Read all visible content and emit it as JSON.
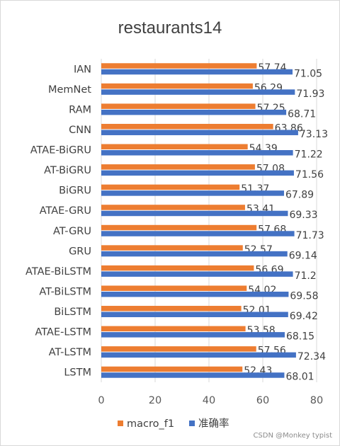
{
  "chart_data": {
    "type": "bar",
    "orientation": "horizontal",
    "title": "restaurants14",
    "categories": [
      "IAN",
      "MemNet",
      "RAM",
      "CNN",
      "ATAE-BiGRU",
      "AT-BiGRU",
      "BiGRU",
      "ATAE-GRU",
      "AT-GRU",
      "GRU",
      "ATAE-BiLSTM",
      "AT-BiLSTM",
      "BiLSTM",
      "ATAE-LSTM",
      "AT-LSTM",
      "LSTM"
    ],
    "series": [
      {
        "name": "macro_f1",
        "color": "#ED7D31",
        "values": [
          57.74,
          56.29,
          57.25,
          63.86,
          54.39,
          57.08,
          51.37,
          53.41,
          57.68,
          52.57,
          56.69,
          54.02,
          52.01,
          53.58,
          57.56,
          52.43
        ]
      },
      {
        "name": "准确率",
        "color": "#4472C4",
        "values": [
          71.05,
          71.93,
          68.71,
          73.13,
          71.22,
          71.56,
          67.89,
          69.33,
          71.73,
          69.14,
          71.2,
          69.58,
          69.42,
          68.15,
          72.34,
          68.01
        ]
      }
    ],
    "xlim": [
      0,
      80
    ],
    "xticks": [
      0,
      20,
      40,
      60,
      80
    ],
    "grid": true,
    "legend_position": "bottom"
  },
  "watermark": "CSDN @Monkey typist"
}
